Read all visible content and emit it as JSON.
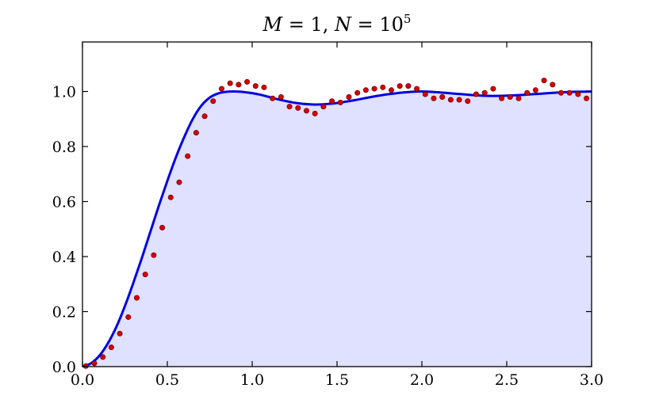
{
  "chart_data": {
    "type": "line",
    "title": "M = 1, N = 10^5",
    "title_parts": {
      "lhs1": "M",
      "eq1": " = 1, ",
      "lhs2": "N",
      "eq2": " = 10",
      "exp": "5"
    },
    "xlabel": "",
    "ylabel": "",
    "xlim": [
      0.0,
      3.0
    ],
    "ylim": [
      0.0,
      1.18
    ],
    "xticks": [
      "0.0",
      "0.5",
      "1.0",
      "1.5",
      "2.0",
      "2.5",
      "3.0"
    ],
    "yticks": [
      "0.0",
      "0.2",
      "0.4",
      "0.6",
      "0.8",
      "1.0"
    ],
    "grid": false,
    "legend": "none",
    "colors": {
      "curve": "#0000e0",
      "fill": "#e0e0ff",
      "points": "#d40000",
      "point_edge": "#600000"
    },
    "series": [
      {
        "kind": "line",
        "x": [
          0.0,
          0.05,
          0.1,
          0.15,
          0.2,
          0.25,
          0.3,
          0.35,
          0.4,
          0.45,
          0.5,
          0.55,
          0.6,
          0.65,
          0.7,
          0.75,
          0.8,
          0.85,
          0.9,
          0.95,
          1.0,
          1.05,
          1.1,
          1.15,
          1.2,
          1.25,
          1.3,
          1.35,
          1.4,
          1.45,
          1.5,
          1.6,
          1.7,
          1.8,
          1.9,
          2.0,
          2.1,
          2.2,
          2.3,
          2.4,
          2.5,
          2.6,
          2.7,
          2.8,
          2.9,
          3.0
        ],
        "y": [
          0.0,
          0.012,
          0.04,
          0.085,
          0.145,
          0.22,
          0.305,
          0.395,
          0.49,
          0.585,
          0.675,
          0.76,
          0.835,
          0.9,
          0.948,
          0.978,
          0.993,
          0.999,
          1.0,
          0.998,
          0.994,
          0.988,
          0.98,
          0.972,
          0.965,
          0.959,
          0.955,
          0.953,
          0.953,
          0.955,
          0.958,
          0.968,
          0.98,
          0.99,
          0.997,
          1.0,
          0.997,
          0.992,
          0.987,
          0.984,
          0.985,
          0.988,
          0.992,
          0.996,
          0.999,
          1.0
        ]
      },
      {
        "kind": "scatter",
        "x": [
          0.02,
          0.07,
          0.12,
          0.17,
          0.22,
          0.27,
          0.32,
          0.37,
          0.42,
          0.47,
          0.52,
          0.57,
          0.62,
          0.67,
          0.72,
          0.77,
          0.82,
          0.87,
          0.92,
          0.97,
          1.02,
          1.07,
          1.12,
          1.17,
          1.22,
          1.27,
          1.32,
          1.37,
          1.42,
          1.47,
          1.52,
          1.57,
          1.62,
          1.67,
          1.72,
          1.77,
          1.82,
          1.87,
          1.92,
          1.97,
          2.02,
          2.07,
          2.12,
          2.17,
          2.22,
          2.27,
          2.32,
          2.37,
          2.42,
          2.47,
          2.52,
          2.57,
          2.62,
          2.67,
          2.72,
          2.77,
          2.82,
          2.87,
          2.92,
          2.97
        ],
        "y": [
          0.002,
          0.012,
          0.035,
          0.07,
          0.12,
          0.18,
          0.25,
          0.335,
          0.405,
          0.505,
          0.615,
          0.67,
          0.765,
          0.85,
          0.91,
          0.965,
          1.01,
          1.03,
          1.025,
          1.035,
          1.02,
          1.015,
          0.975,
          0.98,
          0.945,
          0.94,
          0.93,
          0.92,
          0.945,
          0.965,
          0.96,
          0.98,
          0.995,
          1.005,
          1.01,
          1.015,
          1.005,
          1.02,
          1.02,
          1.01,
          0.99,
          0.975,
          0.98,
          0.97,
          0.97,
          0.965,
          0.99,
          0.995,
          1.01,
          0.975,
          0.98,
          0.975,
          0.995,
          1.005,
          1.04,
          1.025,
          0.995,
          0.995,
          0.99,
          0.975
        ]
      }
    ]
  }
}
